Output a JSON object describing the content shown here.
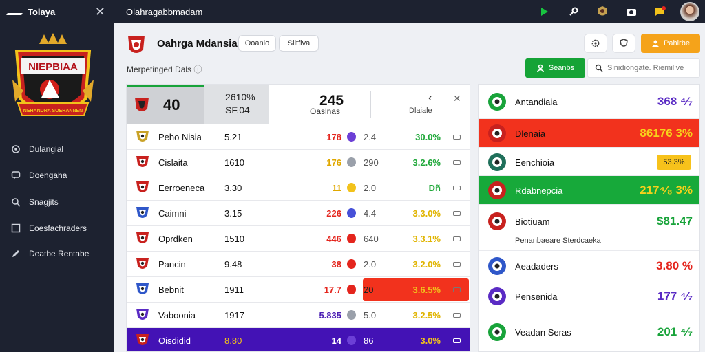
{
  "app": {
    "brand": "Tolaya",
    "topbar_title": "Olahragabbmadam"
  },
  "sidebar": {
    "crest_text": "NIEPBIAA",
    "crest_banner": "NEHANDRA SOERANNEN",
    "items": [
      {
        "label": "Dulangial"
      },
      {
        "label": "Doengaha"
      },
      {
        "label": "Snagjits"
      },
      {
        "label": "Eoesfachraders"
      },
      {
        "label": "Deatbe Rentabe"
      }
    ]
  },
  "header": {
    "title": "Oahrga Mdansia",
    "chip1": "Ooanio",
    "chip2": "Slitfiva",
    "subtitle": "Merpetinged Dals",
    "btn_primary": "Pahirbe",
    "btn_green": "Seanbs",
    "search_placeholder": "Sinidiongate. Riemillve"
  },
  "summary": {
    "left_value": "40",
    "mid_line1": "2610%",
    "mid_line2": "SF.04",
    "score": "245",
    "score_label": "Oaslnas",
    "col_label": "Dlaiale"
  },
  "table": {
    "rows": [
      {
        "name": "Peho Nisia",
        "v1": "5.21",
        "v2": "178",
        "v3": "2.4",
        "v4": "30.0%",
        "v2_color": "#e4251d",
        "v4_color": "#20a83a",
        "dot_color": "#6c3fd6",
        "crest": "#c9a227",
        "hl": "none"
      },
      {
        "name": "Cislaita",
        "v1": "1610",
        "v2": "176",
        "v3": "290",
        "v4": "3.2.6%",
        "v2_color": "#e0a800",
        "v4_color": "#20a83a",
        "dot_color": "#9aa0aa",
        "crest": "#c8211e",
        "hl": "none"
      },
      {
        "name": "Eerroeneca",
        "v1": "3.30",
        "v2": "11",
        "v3": "2.0",
        "v4": "Dñ",
        "v2_color": "#e0a800",
        "v4_color": "#20a83a",
        "dot_color": "#f2c21b",
        "crest": "#c8211e",
        "hl": "none"
      },
      {
        "name": "Caimni",
        "v1": "3.15",
        "v2": "226",
        "v3": "4.4",
        "v4": "3.3.0%",
        "v2_color": "#e4251d",
        "v4_color": "#e0b400",
        "dot_color": "#4650d8",
        "crest": "#2f57c9",
        "hl": "none"
      },
      {
        "name": "Oprdken",
        "v1": "1510",
        "v2": "446",
        "v3": "640",
        "v4": "3.3.1%",
        "v2_color": "#e4251d",
        "v4_color": "#e0b400",
        "dot_color": "#e4251d",
        "crest": "#c8211e",
        "hl": "none"
      },
      {
        "name": "Pancin",
        "v1": "9.48",
        "v2": "38",
        "v3": "2.0",
        "v4": "3.2.0%",
        "v2_color": "#e4251d",
        "v4_color": "#e0b400",
        "dot_color": "#e4251d",
        "crest": "#c8211e",
        "hl": "none"
      },
      {
        "name": "Bebnit",
        "v1": "1911",
        "v2": "17.7",
        "v3": "20",
        "v4": "3.6.5%",
        "v2_color": "#e4251d",
        "v4_color": "#f2c21b",
        "dot_color": "#e4251d",
        "crest": "#2f57c9",
        "hl": "red"
      },
      {
        "name": "Vaboonia",
        "v1": "1917",
        "v2": "5.835",
        "v3": "5.0",
        "v4": "3.2.5%",
        "v2_color": "#4b1fb3",
        "v4_color": "#e0b400",
        "dot_color": "#9aa0aa",
        "crest": "#5a2bc4",
        "hl": "none"
      },
      {
        "name": "Oisdidid",
        "v1": "8.80",
        "v2": "14",
        "v3": "86",
        "v4": "3.0%",
        "v2_color": "#ffffff",
        "v4_color": "#f2c21b",
        "dot_color": "#6c3fd6",
        "crest": "#c8211e",
        "hl": "purple"
      }
    ]
  },
  "right": {
    "rows": [
      {
        "name": "Antandiaia",
        "value": "368 ⁴⁄₇",
        "value_color": "#5a2bc4",
        "crest": "#18a33a",
        "bg": "#ffffff",
        "text": "#111111"
      },
      {
        "name": "Dlenaia",
        "value": "86176 3%",
        "value_color": "#f7d21b",
        "crest": "#c8211e",
        "bg": "#f2321d",
        "text": "#111111"
      },
      {
        "name": "Eenchioia",
        "value": "53.3%",
        "value_color": "#222222",
        "crest": "#1f6f5a",
        "bg": "#ffffff",
        "text": "#111111"
      },
      {
        "name": "Rdabnepcia",
        "value": "217⁴⁄₈ 3%",
        "value_color": "#f7d21b",
        "crest": "#c8211e",
        "bg": "#17a93a",
        "text": "#ffffff"
      },
      {
        "name": "Biotiuam",
        "value": "$81.47",
        "value_color": "#18a33a",
        "crest": "#c8211e",
        "bg": "#ffffff",
        "text": "#111111",
        "sub": "Penanbaeare Sterdcaeka"
      },
      {
        "name": "Aeadaders",
        "value": "3.80 %",
        "value_color": "#e4251d",
        "crest": "#2f57c9",
        "bg": "#ffffff",
        "text": "#111111"
      },
      {
        "name": "Pensenida",
        "value": "177 ⁴⁄₇",
        "value_color": "#5a2bc4",
        "crest": "#5a2bc4",
        "bg": "#ffffff",
        "text": "#111111"
      },
      {
        "name": "Veadan Seras",
        "value": "201 ⁴⁄₇",
        "value_color": "#18a33a",
        "crest": "#18a33a",
        "bg": "#ffffff",
        "text": "#111111"
      }
    ]
  },
  "colors": {
    "sidebar_bg": "#1d2230",
    "accent_green": "#15a336",
    "accent_orange": "#f5a31a",
    "accent_red": "#f2321d",
    "accent_purple": "#4312b5"
  },
  "icons": [
    "close-icon",
    "play-icon",
    "pin-icon",
    "alert-icon",
    "camera-icon",
    "chat-icon",
    "gear-icon",
    "shield-icon",
    "user-icon",
    "search-icon",
    "chevron-left-icon"
  ]
}
